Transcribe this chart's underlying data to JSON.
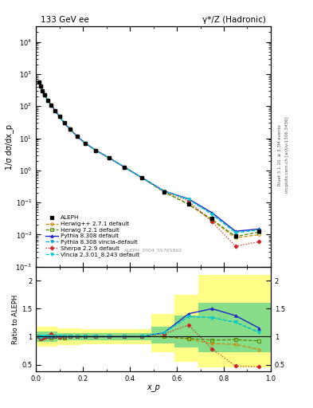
{
  "title_left": "133 GeV ee",
  "title_right": "γ*/Z (Hadronic)",
  "ylabel_main": "1/σ dσ/dx_p",
  "ylabel_ratio": "Ratio to ALEPH",
  "xlabel": "x_p",
  "watermark": "ALEPH_2004_S5765862",
  "right_label_top": "Rivet 3.1.10, ≥ 3.3M events",
  "right_label_mid": "mcplots.cern.ch [arXiv:1306.3436]",
  "xp": [
    0.012,
    0.02,
    0.028,
    0.038,
    0.05,
    0.065,
    0.082,
    0.1,
    0.12,
    0.145,
    0.175,
    0.21,
    0.255,
    0.31,
    0.375,
    0.45,
    0.545,
    0.65,
    0.75,
    0.85,
    0.95
  ],
  "aleph_y": [
    560,
    415,
    300,
    220,
    155,
    108,
    72,
    48,
    30,
    19,
    11.5,
    7.0,
    4.2,
    2.5,
    1.28,
    0.6,
    0.215,
    0.092,
    0.032,
    0.0093,
    0.013
  ],
  "herwig271_y": [
    560,
    415,
    300,
    220,
    155,
    108,
    72,
    48,
    30,
    19,
    11.5,
    7.0,
    4.2,
    2.5,
    1.28,
    0.6,
    0.215,
    0.088,
    0.028,
    0.008,
    0.01
  ],
  "herwig721_y": [
    560,
    415,
    300,
    220,
    155,
    108,
    72,
    48,
    30,
    19,
    11.5,
    7.0,
    4.2,
    2.5,
    1.28,
    0.6,
    0.215,
    0.089,
    0.03,
    0.0088,
    0.012
  ],
  "pythia308_y": [
    560,
    415,
    300,
    220,
    155,
    108,
    72,
    48,
    30,
    19,
    11.5,
    7.0,
    4.2,
    2.5,
    1.28,
    0.6,
    0.23,
    0.13,
    0.048,
    0.0128,
    0.015
  ],
  "pythia308v_y": [
    560,
    415,
    300,
    220,
    155,
    108,
    72,
    48,
    30,
    19,
    11.5,
    7.0,
    4.2,
    2.5,
    1.28,
    0.6,
    0.23,
    0.125,
    0.043,
    0.0117,
    0.014
  ],
  "sherpa229_y": [
    560,
    415,
    300,
    220,
    155,
    108,
    72,
    48,
    30,
    19,
    11.5,
    7.0,
    4.2,
    2.5,
    1.28,
    0.6,
    0.226,
    0.111,
    0.025,
    0.0044,
    0.006
  ],
  "vincia_y": [
    560,
    415,
    300,
    220,
    155,
    108,
    72,
    48,
    30,
    19,
    11.5,
    7.0,
    4.2,
    2.5,
    1.28,
    0.6,
    0.23,
    0.125,
    0.043,
    0.0117,
    0.014
  ],
  "ratio_xp": [
    0.012,
    0.02,
    0.028,
    0.038,
    0.05,
    0.065,
    0.082,
    0.1,
    0.12,
    0.145,
    0.175,
    0.21,
    0.255,
    0.31,
    0.375,
    0.45,
    0.545,
    0.65,
    0.75,
    0.85,
    0.95
  ],
  "ratio_herwig271": [
    1.0,
    0.97,
    0.98,
    0.99,
    1.0,
    0.98,
    1.0,
    0.99,
    0.98,
    1.0,
    1.0,
    1.0,
    1.0,
    1.0,
    1.0,
    1.0,
    1.0,
    0.957,
    0.875,
    0.86,
    0.77
  ],
  "ratio_herwig721": [
    1.0,
    0.97,
    0.98,
    0.99,
    1.0,
    0.98,
    1.0,
    0.99,
    0.98,
    1.0,
    1.0,
    1.0,
    1.0,
    1.0,
    1.0,
    1.0,
    1.0,
    0.967,
    0.938,
    0.946,
    0.923
  ],
  "ratio_pythia308": [
    1.0,
    0.98,
    1.0,
    1.0,
    1.0,
    1.0,
    1.0,
    1.0,
    1.0,
    1.0,
    1.0,
    1.0,
    1.0,
    1.0,
    1.0,
    1.0,
    1.07,
    1.41,
    1.5,
    1.376,
    1.154
  ],
  "ratio_pythia308v": [
    1.0,
    0.98,
    1.0,
    1.0,
    1.0,
    1.0,
    1.0,
    1.0,
    1.0,
    1.0,
    1.0,
    1.0,
    1.0,
    1.0,
    1.0,
    1.0,
    1.07,
    1.36,
    1.34,
    1.258,
    1.077
  ],
  "ratio_sherpa229": [
    1.0,
    0.97,
    0.98,
    0.99,
    1.0,
    1.05,
    1.0,
    0.99,
    1.0,
    1.0,
    1.0,
    1.0,
    1.0,
    1.0,
    1.0,
    1.0,
    1.05,
    1.207,
    0.781,
    0.473,
    0.462
  ],
  "ratio_vincia": [
    1.0,
    0.98,
    1.0,
    1.0,
    1.0,
    1.0,
    1.0,
    1.0,
    1.0,
    1.0,
    1.0,
    1.0,
    1.0,
    1.0,
    1.0,
    1.0,
    1.07,
    1.36,
    1.34,
    1.258,
    1.077
  ],
  "band_x_edges": [
    0.0,
    0.04,
    0.09,
    0.19,
    0.29,
    0.49,
    0.59,
    0.69,
    1.01
  ],
  "band_yellow_lo": [
    0.82,
    0.82,
    0.85,
    0.87,
    0.87,
    0.72,
    0.55,
    0.45,
    0.45
  ],
  "band_yellow_hi": [
    1.18,
    1.18,
    1.15,
    1.13,
    1.13,
    1.4,
    1.75,
    2.1,
    2.1
  ],
  "band_green_lo": [
    0.91,
    0.91,
    0.93,
    0.93,
    0.93,
    0.88,
    0.8,
    0.72,
    0.72
  ],
  "band_green_hi": [
    1.09,
    1.09,
    1.07,
    1.07,
    1.07,
    1.18,
    1.38,
    1.6,
    1.6
  ],
  "color_aleph": "#000000",
  "color_herwig271": "#cc8800",
  "color_herwig721": "#558800",
  "color_pythia308": "#2222cc",
  "color_pythia308v": "#00aacc",
  "color_sherpa229": "#cc2222",
  "color_vincia": "#00cccc",
  "ylim_main": [
    0.001,
    30000.0
  ],
  "ylim_ratio": [
    0.38,
    2.25
  ],
  "xlim": [
    0.0,
    1.0
  ],
  "yticks_ratio": [
    0.5,
    1.0,
    1.5,
    2.0
  ],
  "ytick_labels_ratio": [
    "0.5",
    "1",
    "1.5",
    "2"
  ]
}
